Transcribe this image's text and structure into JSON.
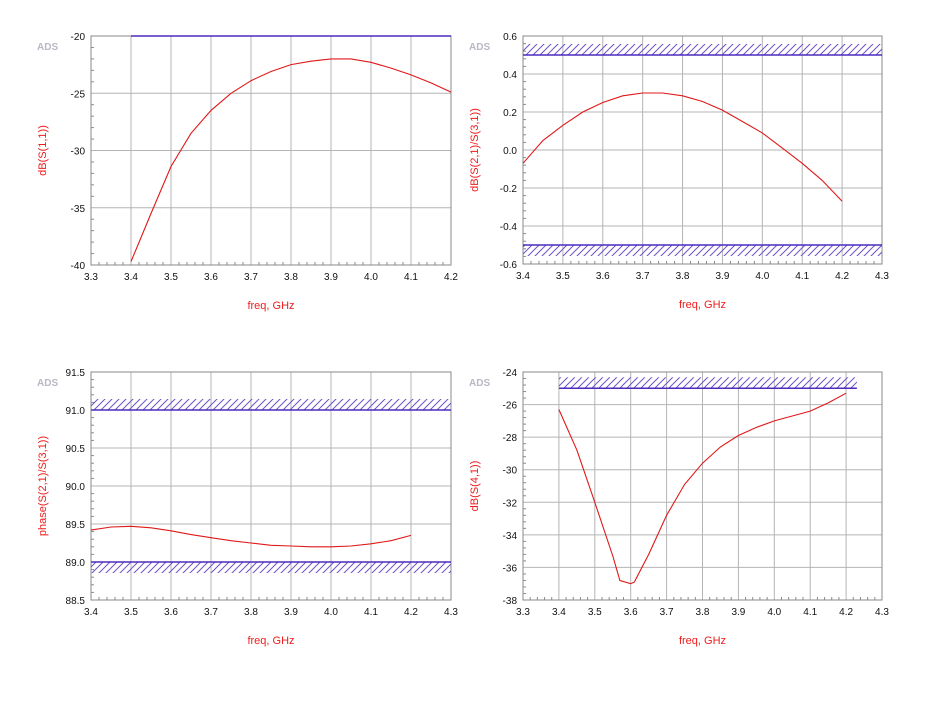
{
  "colors": {
    "grid": "#b4b4b4",
    "frame": "#8a8a8a",
    "trace": "#e01818",
    "spec_line": "#4d2bbf",
    "spec_hatch": "#6e52c8",
    "axis_title": "#ee1c1c",
    "brand": "#b9b9c6"
  },
  "chart_data": [
    {
      "type": "line",
      "brand": "ADS",
      "xlabel": "freq, GHz",
      "ylabel": "dB(S(1,1))",
      "xlim": [
        3.3,
        4.2
      ],
      "ylim": [
        -40,
        -20
      ],
      "x_ticks": [
        3.3,
        3.4,
        3.5,
        3.6,
        3.7,
        3.8,
        3.9,
        4.0,
        4.1,
        4.2
      ],
      "x_tick_labels": [
        "3.3",
        "3.4",
        "3.5",
        "3.6",
        "3.7",
        "3.8",
        "3.9",
        "4.0",
        "4.1",
        "4.2"
      ],
      "y_ticks": [
        -20,
        -25,
        -30,
        -35,
        -40
      ],
      "y_tick_labels": [
        "-20",
        "-25",
        "-30",
        "-35",
        "-40"
      ],
      "grid": true,
      "series": [
        {
          "x": [
            3.4,
            3.45,
            3.5,
            3.55,
            3.6,
            3.65,
            3.7,
            3.75,
            3.8,
            3.85,
            3.9,
            3.95,
            4.0,
            4.05,
            4.1,
            4.15,
            4.2
          ],
          "y": [
            -39.7,
            -35.5,
            -31.4,
            -28.5,
            -26.5,
            -25.0,
            -23.9,
            -23.1,
            -22.5,
            -22.2,
            -22.0,
            -22.0,
            -22.3,
            -22.8,
            -23.4,
            -24.1,
            -24.9
          ]
        }
      ],
      "spec_limits": [
        {
          "y": -20,
          "x_range": [
            3.4,
            4.2
          ],
          "hatch": "none"
        }
      ]
    },
    {
      "type": "line",
      "brand": "ADS",
      "xlabel": "freq, GHz",
      "ylabel": "dB(S(2,1)/S(3,1))",
      "xlim": [
        3.4,
        4.3
      ],
      "ylim": [
        -0.6,
        0.6
      ],
      "x_ticks": [
        3.4,
        3.5,
        3.6,
        3.7,
        3.8,
        3.9,
        4.0,
        4.1,
        4.2,
        4.3
      ],
      "x_tick_labels": [
        "3.4",
        "3.5",
        "3.6",
        "3.7",
        "3.8",
        "3.9",
        "4.0",
        "4.1",
        "4.2",
        "4.3"
      ],
      "y_ticks": [
        0.6,
        0.4,
        0.2,
        0.0,
        -0.2,
        -0.4,
        -0.6
      ],
      "y_tick_labels": [
        "0.6",
        "0.4",
        "0.2",
        "0.0",
        "-0.2",
        "-0.4",
        "-0.6"
      ],
      "grid": true,
      "series": [
        {
          "x": [
            3.4,
            3.45,
            3.5,
            3.55,
            3.6,
            3.65,
            3.7,
            3.75,
            3.8,
            3.85,
            3.9,
            3.95,
            4.0,
            4.05,
            4.1,
            4.15,
            4.2
          ],
          "y": [
            -0.07,
            0.05,
            0.13,
            0.2,
            0.25,
            0.285,
            0.3,
            0.3,
            0.285,
            0.255,
            0.21,
            0.15,
            0.09,
            0.01,
            -0.07,
            -0.16,
            -0.27
          ]
        }
      ],
      "spec_limits": [
        {
          "y": 0.5,
          "x_range": [
            3.4,
            4.3
          ],
          "hatch": "above"
        },
        {
          "y": -0.5,
          "x_range": [
            3.4,
            4.3
          ],
          "hatch": "below"
        }
      ]
    },
    {
      "type": "line",
      "brand": "ADS",
      "xlabel": "freq, GHz",
      "ylabel": "phase(S(2,1)/S(3,1))",
      "xlim": [
        3.4,
        4.3
      ],
      "ylim": [
        88.5,
        91.5
      ],
      "x_ticks": [
        3.4,
        3.5,
        3.6,
        3.7,
        3.8,
        3.9,
        4.0,
        4.1,
        4.2,
        4.3
      ],
      "x_tick_labels": [
        "3.4",
        "3.5",
        "3.6",
        "3.7",
        "3.8",
        "3.9",
        "4.0",
        "4.1",
        "4.2",
        "4.3"
      ],
      "y_ticks": [
        91.5,
        91.0,
        90.5,
        90.0,
        89.5,
        89.0,
        88.5
      ],
      "y_tick_labels": [
        "91.5",
        "91.0",
        "90.5",
        "90.0",
        "89.5",
        "89.0",
        "88.5"
      ],
      "grid": true,
      "series": [
        {
          "x": [
            3.4,
            3.45,
            3.5,
            3.55,
            3.6,
            3.65,
            3.7,
            3.75,
            3.8,
            3.85,
            3.9,
            3.95,
            4.0,
            4.05,
            4.1,
            4.15,
            4.2
          ],
          "y": [
            89.42,
            89.46,
            89.47,
            89.45,
            89.41,
            89.36,
            89.32,
            89.28,
            89.25,
            89.22,
            89.21,
            89.2,
            89.2,
            89.21,
            89.24,
            89.28,
            89.35
          ]
        }
      ],
      "spec_limits": [
        {
          "y": 91.0,
          "x_range": [
            3.4,
            4.3
          ],
          "hatch": "above"
        },
        {
          "y": 89.0,
          "x_range": [
            3.4,
            4.3
          ],
          "hatch": "below"
        }
      ]
    },
    {
      "type": "line",
      "brand": "ADS",
      "xlabel": "freq, GHz",
      "ylabel": "dB(S(4,1))",
      "xlim": [
        3.3,
        4.3
      ],
      "ylim": [
        -38,
        -24
      ],
      "x_ticks": [
        3.3,
        3.4,
        3.5,
        3.6,
        3.7,
        3.8,
        3.9,
        4.0,
        4.1,
        4.2,
        4.3
      ],
      "x_tick_labels": [
        "3.3",
        "3.4",
        "3.5",
        "3.6",
        "3.7",
        "3.8",
        "3.9",
        "4.0",
        "4.1",
        "4.2",
        "4.3"
      ],
      "y_ticks": [
        -24,
        -26,
        -28,
        -30,
        -32,
        -34,
        -36,
        -38
      ],
      "y_tick_labels": [
        "-24",
        "-26",
        "-28",
        "-30",
        "-32",
        "-34",
        "-36",
        "-38"
      ],
      "grid": true,
      "series": [
        {
          "x": [
            3.4,
            3.45,
            3.5,
            3.55,
            3.57,
            3.6,
            3.61,
            3.65,
            3.7,
            3.75,
            3.8,
            3.85,
            3.9,
            3.95,
            4.0,
            4.05,
            4.1,
            4.15,
            4.2
          ],
          "y": [
            -26.3,
            -28.8,
            -32.0,
            -35.3,
            -36.8,
            -37.0,
            -36.9,
            -35.2,
            -32.8,
            -30.9,
            -29.6,
            -28.6,
            -27.9,
            -27.4,
            -27.0,
            -26.7,
            -26.4,
            -25.9,
            -25.3
          ]
        }
      ],
      "spec_limits": [
        {
          "y": -25,
          "x_range": [
            3.4,
            4.23
          ],
          "hatch": "above"
        }
      ]
    }
  ]
}
